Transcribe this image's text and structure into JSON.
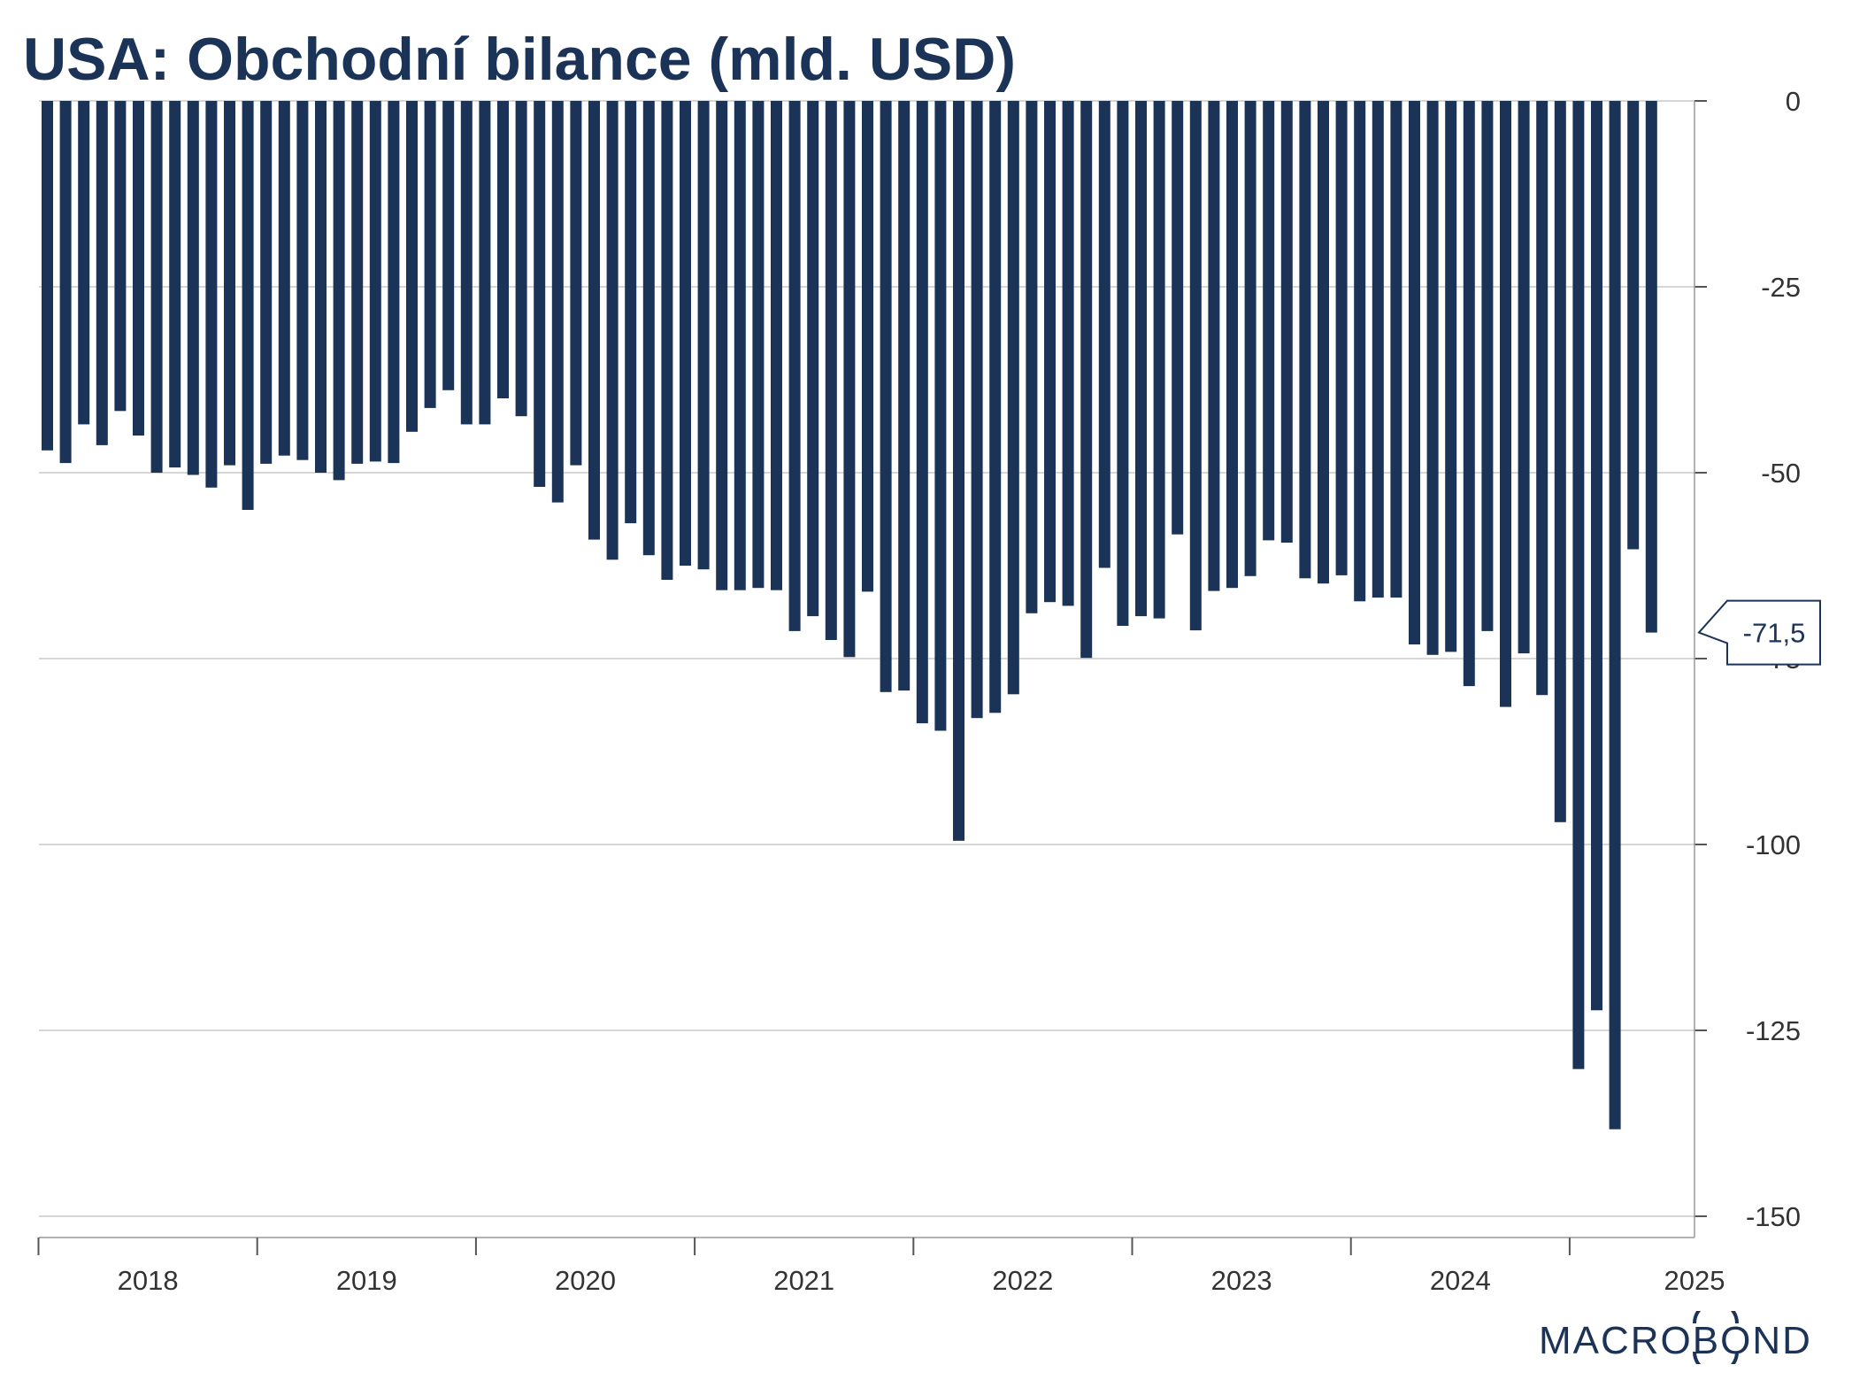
{
  "chart_data": {
    "type": "bar",
    "title": "USA: Obchodní bilance (mld. USD)",
    "x_tick_labels": [
      "2018",
      "2019",
      "2020",
      "2021",
      "2022",
      "2023",
      "2024",
      "2025"
    ],
    "y_tick_labels": [
      "0",
      "-25",
      "-50",
      "-75",
      "-100",
      "-125",
      "-150"
    ],
    "ylim": [
      -153,
      0
    ],
    "y_axis_side": "right",
    "grid": true,
    "start": "2018-01",
    "frequency": "monthly",
    "values": [
      -47,
      -48.7,
      -43.5,
      -46.3,
      -41.7,
      -45,
      -50,
      -49.3,
      -50.3,
      -52,
      -49,
      -55,
      -48.8,
      -47.7,
      -48.3,
      -50,
      -51,
      -48.8,
      -48.5,
      -48.7,
      -44.5,
      -41.3,
      -38.9,
      -43.5,
      -43.5,
      -40,
      -42.4,
      -51.9,
      -54,
      -49,
      -59,
      -61.7,
      -56.8,
      -61.1,
      -64.4,
      -62.5,
      -63,
      -65.8,
      -65.8,
      -65.5,
      -65.8,
      -71.3,
      -69.3,
      -72.5,
      -74.8,
      -66,
      -79.5,
      -79.3,
      -83.7,
      -84.7,
      -99.5,
      -83,
      -82.3,
      -79.8,
      -68.9,
      -67.4,
      -67.9,
      -74.9,
      -62.8,
      -70.6,
      -69.3,
      -69.6,
      -58.3,
      -71.2,
      -65.9,
      -65.5,
      -63.9,
      -59.1,
      -59.4,
      -64.2,
      -64.9,
      -63.8,
      -67.3,
      -66.8,
      -66.8,
      -73.1,
      -74.5,
      -74.1,
      -78.7,
      -71.3,
      -81.5,
      -74.3,
      -79.9,
      -97,
      -130.2,
      -122.3,
      -138.3,
      -60.3,
      -71.5
    ],
    "last_value_label": "-71,5",
    "bar_color": "#1c3358"
  },
  "logo": {
    "text": "MACROBOND"
  }
}
